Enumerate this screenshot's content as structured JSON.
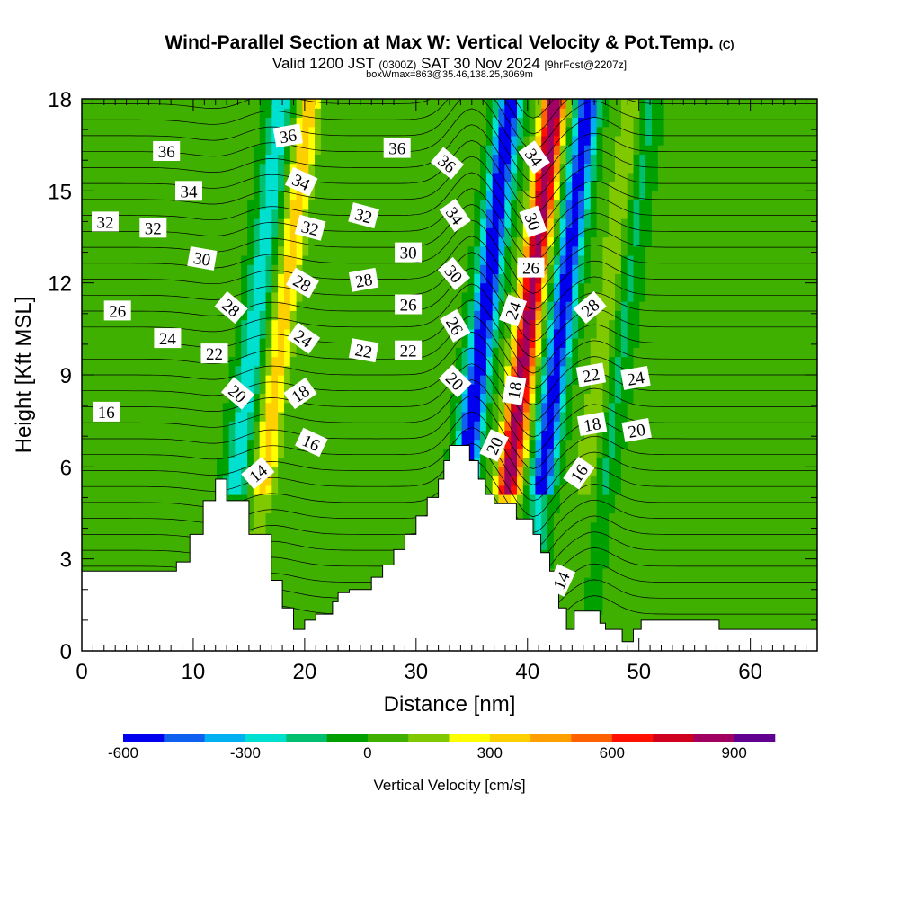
{
  "title": {
    "main": "Wind-Parallel Section at Max W: Vertical Velocity & Pot.Temp.",
    "main_suffix": "(C)",
    "valid_prefix": "Valid 1200 JST",
    "valid_utc": "(0300Z)",
    "valid_date": "SAT 30 Nov 2024",
    "forecast": "[9hrFcst@2207z]",
    "box_info": "boxWmax=863@35.46,138.25,3069m"
  },
  "chart_data": {
    "type": "heatmap",
    "xlabel": "Distance [nm]",
    "ylabel": "Height [Kft MSL]",
    "xlim": [
      0,
      66
    ],
    "ylim": [
      0,
      18
    ],
    "x_ticks": [
      "0",
      "10",
      "20",
      "30",
      "40",
      "50",
      "60"
    ],
    "y_ticks": [
      "0",
      "3",
      "6",
      "9",
      "12",
      "15",
      "18"
    ],
    "colorbar": {
      "label": "Vertical Velocity [cm/s]",
      "tick_labels": [
        "-600",
        "-300",
        "0",
        "300",
        "600",
        "900"
      ],
      "tick_values": [
        -600,
        -300,
        0,
        300,
        600,
        900
      ],
      "range": [
        -600,
        1000
      ],
      "colors": [
        "#0000ee",
        "#1060f0",
        "#00b0f0",
        "#00e0d0",
        "#00c070",
        "#00a000",
        "#40b000",
        "#80c800",
        "#ffff00",
        "#ffd000",
        "#ffa000",
        "#ff6000",
        "#ff1000",
        "#d00020",
        "#a00060",
        "#600090"
      ]
    },
    "updraft_cores": [
      {
        "x": 16.5,
        "w": 330
      },
      {
        "x": 38.5,
        "w": 863
      },
      {
        "x": 45.5,
        "w": 180
      }
    ],
    "downdraft_cores": [
      {
        "x": 14,
        "w": -300
      },
      {
        "x": 34.5,
        "w": -650
      },
      {
        "x": 41.5,
        "w": -600
      },
      {
        "x": 47,
        "w": -150
      }
    ],
    "terrain": [
      [
        0,
        2.6
      ],
      [
        8.5,
        2.6
      ],
      [
        8.5,
        2.9
      ],
      [
        9.7,
        2.9
      ],
      [
        9.7,
        3.8
      ],
      [
        10.9,
        3.8
      ],
      [
        10.9,
        4.9
      ],
      [
        12,
        4.9
      ],
      [
        12,
        5.6
      ],
      [
        13,
        5.6
      ],
      [
        13,
        4.9
      ],
      [
        15,
        4.9
      ],
      [
        15,
        3.8
      ],
      [
        17,
        3.8
      ],
      [
        17,
        2.3
      ],
      [
        18,
        2.3
      ],
      [
        18,
        1.4
      ],
      [
        19,
        1.4
      ],
      [
        19,
        0.7
      ],
      [
        20,
        0.7
      ],
      [
        20,
        1.0
      ],
      [
        21,
        1.0
      ],
      [
        21,
        1.2
      ],
      [
        22.5,
        1.2
      ],
      [
        22.5,
        1.6
      ],
      [
        23,
        1.6
      ],
      [
        23,
        1.9
      ],
      [
        24,
        1.9
      ],
      [
        24,
        2.0
      ],
      [
        26,
        2.0
      ],
      [
        26,
        2.4
      ],
      [
        27,
        2.4
      ],
      [
        27,
        2.8
      ],
      [
        28,
        2.8
      ],
      [
        28,
        3.3
      ],
      [
        29,
        3.3
      ],
      [
        29,
        3.8
      ],
      [
        30,
        3.8
      ],
      [
        30,
        4.4
      ],
      [
        31,
        4.4
      ],
      [
        31,
        5.0
      ],
      [
        32,
        5.0
      ],
      [
        32,
        5.6
      ],
      [
        32.5,
        5.6
      ],
      [
        32.5,
        6.2
      ],
      [
        33,
        6.2
      ],
      [
        33,
        6.7
      ],
      [
        34.8,
        6.7
      ],
      [
        34.8,
        6.2
      ],
      [
        35.6,
        6.2
      ],
      [
        35.6,
        5.6
      ],
      [
        36.2,
        5.6
      ],
      [
        36.2,
        5.1
      ],
      [
        37,
        5.1
      ],
      [
        37,
        4.8
      ],
      [
        39,
        4.8
      ],
      [
        39,
        4.3
      ],
      [
        40.5,
        4.3
      ],
      [
        40.5,
        3.8
      ],
      [
        41.2,
        3.8
      ],
      [
        41.2,
        3.2
      ],
      [
        42,
        3.2
      ],
      [
        42,
        2.6
      ],
      [
        42.8,
        2.6
      ],
      [
        42.8,
        1.4
      ],
      [
        43.5,
        1.4
      ],
      [
        43.5,
        0.7
      ],
      [
        44.2,
        0.7
      ],
      [
        44.2,
        1.3
      ],
      [
        46.5,
        1.3
      ],
      [
        46.5,
        0.9
      ],
      [
        47,
        0.9
      ],
      [
        47,
        0.7
      ],
      [
        48.5,
        0.7
      ],
      [
        48.5,
        0.3
      ],
      [
        49.5,
        0.3
      ],
      [
        49.5,
        0.7
      ],
      [
        50.2,
        0.7
      ],
      [
        50.2,
        1.0
      ],
      [
        57.2,
        1.0
      ],
      [
        57.2,
        0.7
      ],
      [
        66,
        0.7
      ]
    ],
    "theta_labels": [
      {
        "t": "36",
        "x": 7.6,
        "y": 16.3,
        "r": 0
      },
      {
        "t": "34",
        "x": 9.6,
        "y": 15.0,
        "r": 0
      },
      {
        "t": "32",
        "x": 2.1,
        "y": 14.0,
        "r": 0
      },
      {
        "t": "32",
        "x": 6.4,
        "y": 13.8,
        "r": 0
      },
      {
        "t": "30",
        "x": 10.8,
        "y": 12.8,
        "r": 10
      },
      {
        "t": "26",
        "x": 3.2,
        "y": 11.1,
        "r": 0
      },
      {
        "t": "24",
        "x": 7.7,
        "y": 10.2,
        "r": 0
      },
      {
        "t": "22",
        "x": 11.9,
        "y": 9.7,
        "r": 0
      },
      {
        "t": "16",
        "x": 2.2,
        "y": 7.8,
        "r": 0
      },
      {
        "t": "28",
        "x": 13.4,
        "y": 11.2,
        "r": 40
      },
      {
        "t": "20",
        "x": 14.0,
        "y": 8.4,
        "r": 40
      },
      {
        "t": "14",
        "x": 15.8,
        "y": 5.8,
        "r": -40
      },
      {
        "t": "36",
        "x": 18.5,
        "y": 16.8,
        "r": -10
      },
      {
        "t": "34",
        "x": 19.7,
        "y": 15.3,
        "r": 25
      },
      {
        "t": "32",
        "x": 20.5,
        "y": 13.8,
        "r": 15
      },
      {
        "t": "28",
        "x": 19.8,
        "y": 12.0,
        "r": 30
      },
      {
        "t": "24",
        "x": 19.9,
        "y": 10.2,
        "r": 35
      },
      {
        "t": "18",
        "x": 19.6,
        "y": 8.4,
        "r": -35
      },
      {
        "t": "16",
        "x": 20.6,
        "y": 6.8,
        "r": 25
      },
      {
        "t": "32",
        "x": 25.3,
        "y": 14.2,
        "r": 15
      },
      {
        "t": "28",
        "x": 25.3,
        "y": 12.1,
        "r": -10
      },
      {
        "t": "22",
        "x": 25.3,
        "y": 9.8,
        "r": 10
      },
      {
        "t": "36",
        "x": 28.3,
        "y": 16.4,
        "r": 0
      },
      {
        "t": "30",
        "x": 29.3,
        "y": 13.0,
        "r": 0
      },
      {
        "t": "26",
        "x": 29.3,
        "y": 11.3,
        "r": 0
      },
      {
        "t": "22",
        "x": 29.3,
        "y": 9.8,
        "r": 0
      },
      {
        "t": "36",
        "x": 32.8,
        "y": 15.9,
        "r": 40
      },
      {
        "t": "34",
        "x": 33.5,
        "y": 14.2,
        "r": 55
      },
      {
        "t": "30",
        "x": 33.4,
        "y": 12.3,
        "r": 50
      },
      {
        "t": "26",
        "x": 33.5,
        "y": 10.6,
        "r": 60
      },
      {
        "t": "20",
        "x": 33.5,
        "y": 8.8,
        "r": 45
      },
      {
        "t": "20",
        "x": 37.0,
        "y": 6.7,
        "r": -65
      },
      {
        "t": "24",
        "x": 38.7,
        "y": 11.1,
        "r": -70
      },
      {
        "t": "18",
        "x": 38.8,
        "y": 8.5,
        "r": -80
      },
      {
        "t": "34",
        "x": 40.6,
        "y": 16.1,
        "r": 55
      },
      {
        "t": "30",
        "x": 40.5,
        "y": 14.0,
        "r": 70
      },
      {
        "t": "26",
        "x": 40.3,
        "y": 12.5,
        "r": 0
      },
      {
        "t": "28",
        "x": 45.6,
        "y": 11.2,
        "r": -40
      },
      {
        "t": "22",
        "x": 45.7,
        "y": 9.0,
        "r": -10
      },
      {
        "t": "18",
        "x": 45.8,
        "y": 7.4,
        "r": -10
      },
      {
        "t": "16",
        "x": 44.6,
        "y": 5.8,
        "r": -55
      },
      {
        "t": "14",
        "x": 43.0,
        "y": 2.3,
        "r": -65
      },
      {
        "t": "24",
        "x": 49.7,
        "y": 8.9,
        "r": -10
      },
      {
        "t": "20",
        "x": 49.8,
        "y": 7.2,
        "r": -10
      }
    ]
  }
}
